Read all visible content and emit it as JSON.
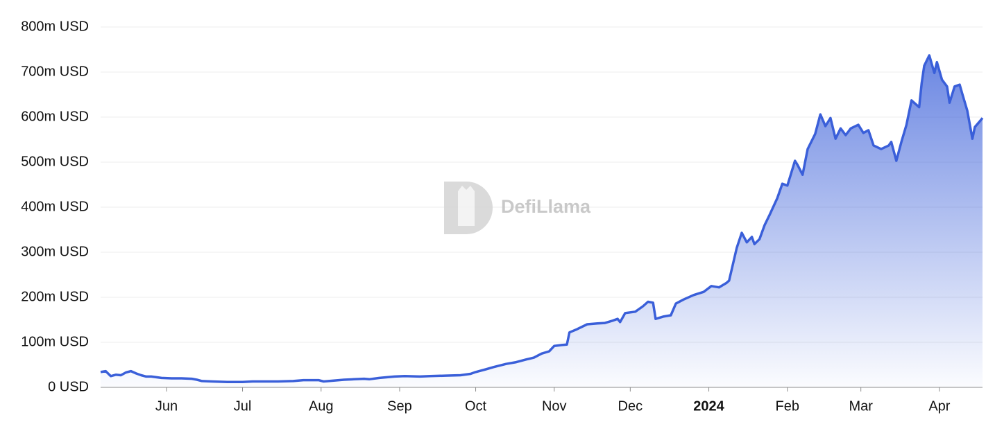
{
  "chart_data": {
    "type": "area",
    "watermark": "DefiLlama",
    "color": "#3a5fd9",
    "grid": true,
    "xlim": [
      0,
      348
    ],
    "xticks": [
      {
        "value": 26,
        "label": "Jun"
      },
      {
        "value": 56,
        "label": "Jul"
      },
      {
        "value": 87,
        "label": "Aug"
      },
      {
        "value": 118,
        "label": "Sep"
      },
      {
        "value": 148,
        "label": "Oct"
      },
      {
        "value": 179,
        "label": "Nov"
      },
      {
        "value": 209,
        "label": "Dec"
      },
      {
        "value": 240,
        "label": "2024"
      },
      {
        "value": 271,
        "label": "Feb"
      },
      {
        "value": 300,
        "label": "Mar"
      },
      {
        "value": 331,
        "label": "Apr"
      }
    ],
    "ylim": [
      0,
      800000000
    ],
    "yticks": [
      {
        "value": 0,
        "label": "0 USD"
      },
      {
        "value": 100000000,
        "label": "100m USD"
      },
      {
        "value": 200000000,
        "label": "200m USD"
      },
      {
        "value": 300000000,
        "label": "300m USD"
      },
      {
        "value": 400000000,
        "label": "400m USD"
      },
      {
        "value": 500000000,
        "label": "500m USD"
      },
      {
        "value": 600000000,
        "label": "600m USD"
      },
      {
        "value": 700000000,
        "label": "700m USD"
      },
      {
        "value": 800000000,
        "label": "800m USD"
      }
    ],
    "x": [
      0,
      2,
      4,
      6,
      8,
      10,
      12,
      14,
      16,
      18,
      20,
      24,
      28,
      32,
      36,
      38,
      40,
      44,
      50,
      56,
      60,
      70,
      76,
      80,
      86,
      88,
      92,
      96,
      100,
      104,
      106,
      110,
      116,
      120,
      126,
      130,
      136,
      142,
      146,
      148,
      152,
      155,
      160,
      164,
      168,
      171,
      174,
      177,
      179,
      182,
      184,
      185,
      188,
      192,
      196,
      199,
      202,
      204,
      205,
      207,
      211,
      214,
      216,
      218,
      219,
      222,
      225,
      227,
      230,
      234,
      238,
      241,
      244,
      247,
      248,
      251,
      253,
      255,
      257,
      258,
      260,
      262,
      264,
      267,
      269,
      271,
      274,
      275,
      277,
      279,
      282,
      284,
      286,
      288,
      290,
      292,
      294,
      296,
      299,
      301,
      303,
      305,
      308,
      311,
      312,
      314,
      316,
      318,
      320,
      323,
      324,
      325,
      327,
      329,
      330,
      332,
      334,
      335,
      337,
      339,
      340,
      342,
      344,
      345,
      347,
      348
    ],
    "values": [
      34000000,
      36000000,
      25000000,
      28000000,
      27000000,
      33000000,
      36000000,
      31000000,
      27000000,
      24000000,
      24000000,
      21000000,
      20000000,
      20000000,
      19000000,
      17000000,
      14000000,
      13000000,
      12000000,
      12000000,
      13000000,
      13000000,
      14000000,
      16000000,
      16000000,
      13000000,
      15000000,
      17000000,
      18000000,
      19000000,
      18000000,
      21000000,
      24000000,
      25000000,
      24000000,
      25000000,
      26000000,
      27000000,
      30000000,
      34000000,
      40000000,
      45000000,
      52000000,
      56000000,
      62000000,
      66000000,
      75000000,
      80000000,
      92000000,
      94000000,
      95000000,
      122000000,
      129000000,
      140000000,
      142000000,
      143000000,
      148000000,
      152000000,
      145000000,
      165000000,
      168000000,
      180000000,
      190000000,
      188000000,
      152000000,
      157000000,
      160000000,
      186000000,
      195000000,
      205000000,
      212000000,
      225000000,
      222000000,
      232000000,
      237000000,
      309000000,
      343000000,
      322000000,
      334000000,
      318000000,
      329000000,
      360000000,
      383000000,
      420000000,
      452000000,
      448000000,
      503000000,
      494000000,
      472000000,
      529000000,
      563000000,
      606000000,
      580000000,
      598000000,
      552000000,
      575000000,
      560000000,
      575000000,
      583000000,
      565000000,
      571000000,
      537000000,
      529000000,
      537000000,
      545000000,
      503000000,
      545000000,
      583000000,
      637000000,
      622000000,
      675000000,
      714000000,
      737000000,
      698000000,
      722000000,
      683000000,
      668000000,
      632000000,
      668000000,
      672000000,
      652000000,
      614000000,
      552000000,
      578000000,
      591000000,
      598000000
    ]
  }
}
